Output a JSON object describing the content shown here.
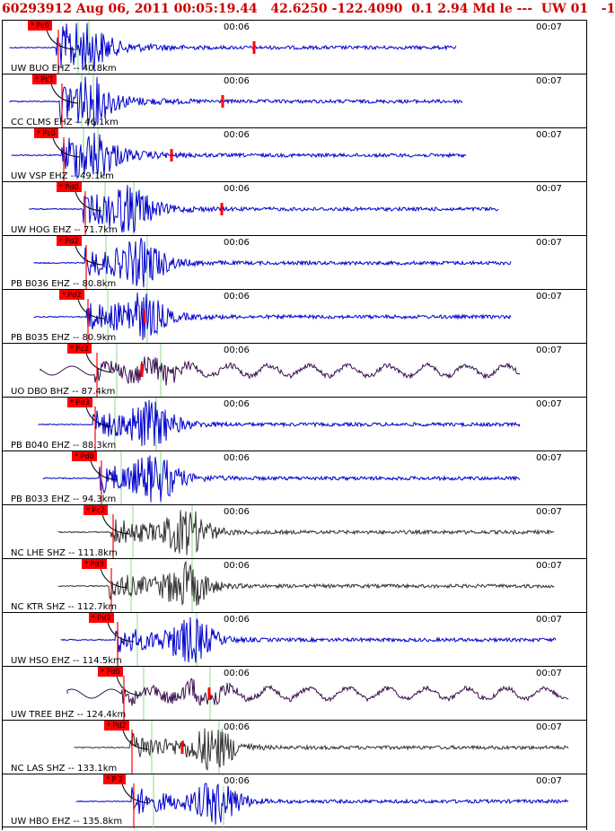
{
  "header": {
    "title": "60293912 Aug 06, 2011 00:05:19.44   42.6250 -122.4090  0.1 2.94 Md le ---  UW 01   -1"
  },
  "time_marks": [
    "00:06",
    "00:07"
  ],
  "colors": {
    "header_text": "#cc0000",
    "blue_trace": "#0000cc",
    "purple_trace": "#3a1050",
    "gray_trace": "#333333",
    "pick_box": "#ff0000",
    "arrival_line": "#88dd88"
  },
  "traces": [
    {
      "station": "UW BUO EHZ -- 40.8km",
      "pick": "* Pc0",
      "color": "blue"
    },
    {
      "station": "CC CLMS EHZ -- 46.1km",
      "pick": "* Pc1",
      "color": "blue"
    },
    {
      "station": "UW VSP EHZ -- 49.1km",
      "pick": "* Pc0",
      "color": "blue"
    },
    {
      "station": "UW HOG EHZ -- 71.7km",
      "pick": "* Pd0",
      "color": "blue"
    },
    {
      "station": "PB B036 EHZ -- 80.8km",
      "pick": "* Pd2",
      "color": "blue"
    },
    {
      "station": "PB B035 EHZ -- 80.9km",
      "pick": "* Pd2",
      "color": "blue"
    },
    {
      "station": "UO DBO BHZ -- 87.4km",
      "pick": "* Pc2",
      "color": "purple"
    },
    {
      "station": "PB B040 EHZ -- 88.3km",
      "pick": "* Pd3",
      "color": "blue"
    },
    {
      "station": "PB B033 EHZ -- 94.3km",
      "pick": "* Pd0",
      "color": "blue"
    },
    {
      "station": "NC LHE SHZ -- 111.8km",
      "pick": "* Pc2",
      "color": "gray"
    },
    {
      "station": "NC KTR SHZ -- 112.7km",
      "pick": "* Pd3",
      "color": "gray"
    },
    {
      "station": "UW HSO EHZ -- 114.5km",
      "pick": "* Pd1",
      "color": "blue"
    },
    {
      "station": "UW TREE BHZ -- 124.4km",
      "pick": "* Pd0",
      "color": "purple"
    },
    {
      "station": "NC LAS SHZ -- 133.1km",
      "pick": "* Pd2",
      "color": "gray"
    },
    {
      "station": "UW HBO EHZ -- 135.8km",
      "pick": "* P 2",
      "color": "blue"
    }
  ]
}
